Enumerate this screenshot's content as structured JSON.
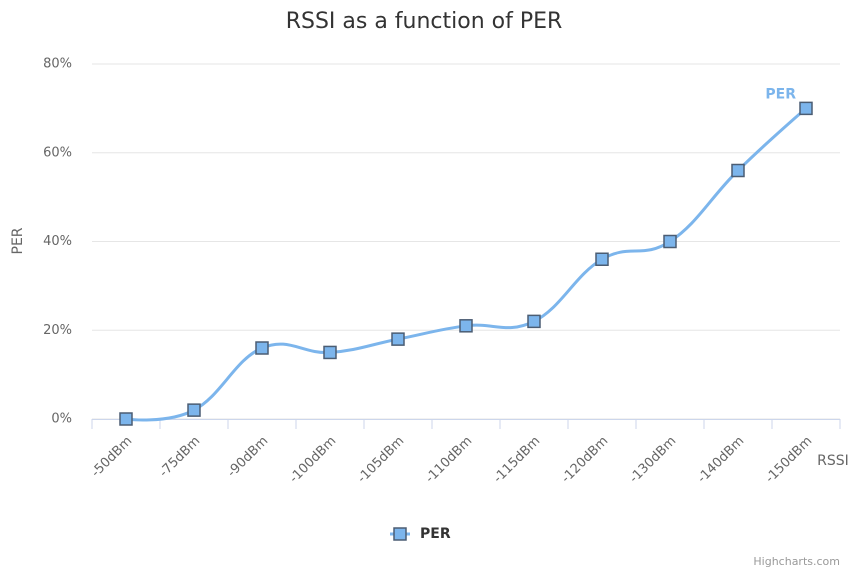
{
  "chart_data": {
    "type": "spline",
    "title": "RSSI as a function of PER",
    "categories": [
      "-50dBm",
      "-75dBm",
      "-90dBm",
      "-100dBm",
      "-105dBm",
      "-110dBm",
      "-115dBm",
      "-120dBm",
      "-130dBm",
      "-140dBm",
      "-150dBm"
    ],
    "series": [
      {
        "name": "PER",
        "color": "#7cb5ec",
        "values": [
          0,
          2,
          16,
          15,
          18,
          21,
          22,
          36,
          40,
          56,
          70
        ]
      }
    ],
    "ylim": [
      0,
      80
    ],
    "yticks": [
      {
        "value": 0,
        "label": "0%"
      },
      {
        "value": 20,
        "label": "20%"
      },
      {
        "value": 40,
        "label": "40%"
      },
      {
        "value": 60,
        "label": "60%"
      },
      {
        "value": 80,
        "label": "80%"
      }
    ],
    "y_label": "PER",
    "x_label": "RSSI",
    "grid": true,
    "legend": "bottom",
    "credits": "Highcharts.com"
  }
}
